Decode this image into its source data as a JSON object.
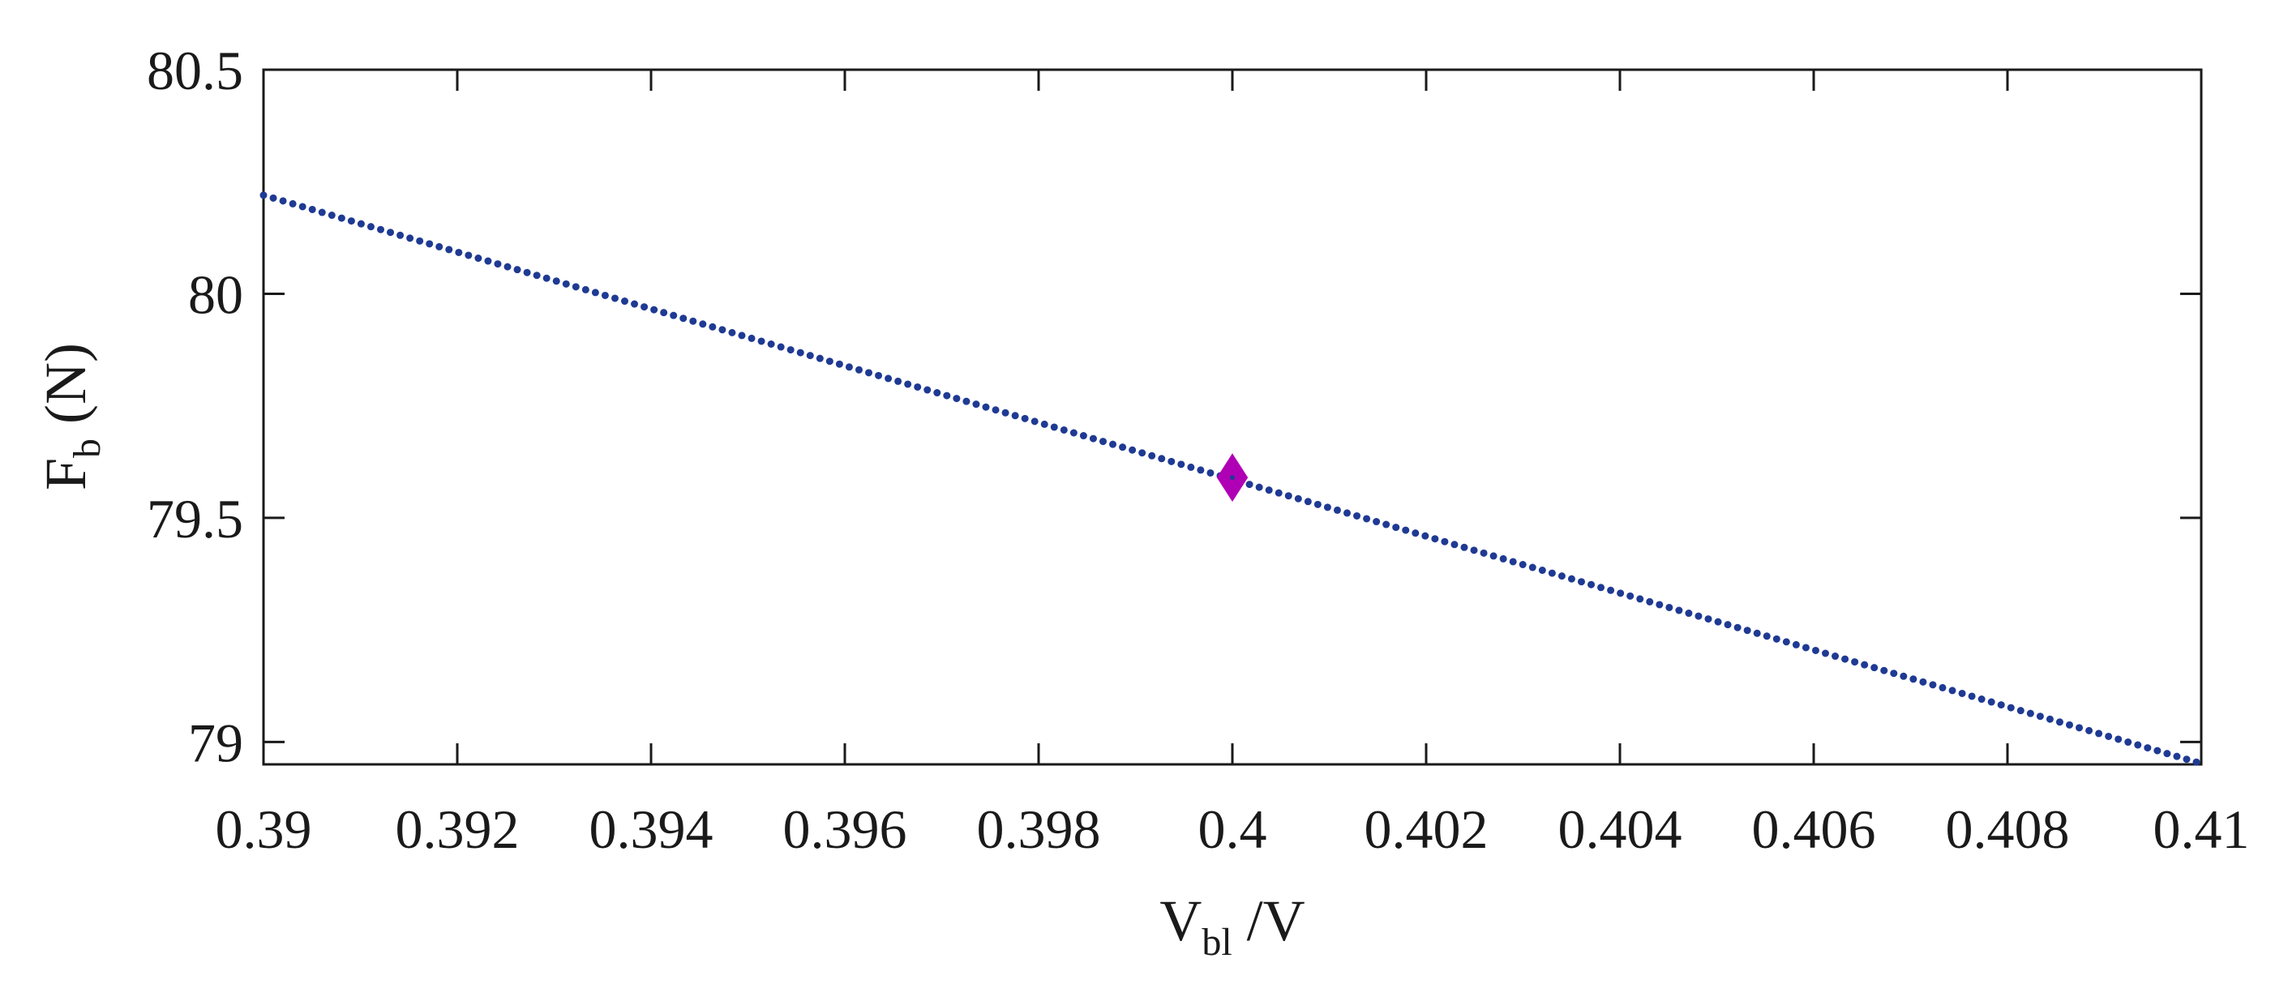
{
  "chart_data": {
    "type": "scatter",
    "title": "",
    "xlabel": {
      "main": "V",
      "sub": "bl",
      "suffix": " /V"
    },
    "ylabel": {
      "main": "F",
      "sub": "b",
      "suffix": " (N)"
    },
    "xlim": [
      0.39,
      0.41
    ],
    "ylim": [
      78.95,
      80.5
    ],
    "xticks": [
      0.39,
      0.392,
      0.394,
      0.396,
      0.398,
      0.4,
      0.402,
      0.404,
      0.406,
      0.408,
      0.41
    ],
    "xtick_labels": [
      "0.39",
      "0.392",
      "0.394",
      "0.396",
      "0.398",
      "0.4",
      "0.402",
      "0.404",
      "0.406",
      "0.408",
      "0.41"
    ],
    "yticks": [
      79,
      79.5,
      80,
      80.5
    ],
    "ytick_labels": [
      "79",
      "79.5",
      "80",
      "80.5"
    ],
    "grid": false,
    "series": [
      {
        "marker": "dot",
        "color": "#1f3a93",
        "x_start": 0.39,
        "x_end": 0.40995,
        "y_start": 80.22,
        "y_end": 78.955,
        "n_points": 199
      },
      {
        "marker": "diamond",
        "color": "#b000b5",
        "x": [
          0.4
        ],
        "y": [
          79.59
        ]
      }
    ]
  }
}
